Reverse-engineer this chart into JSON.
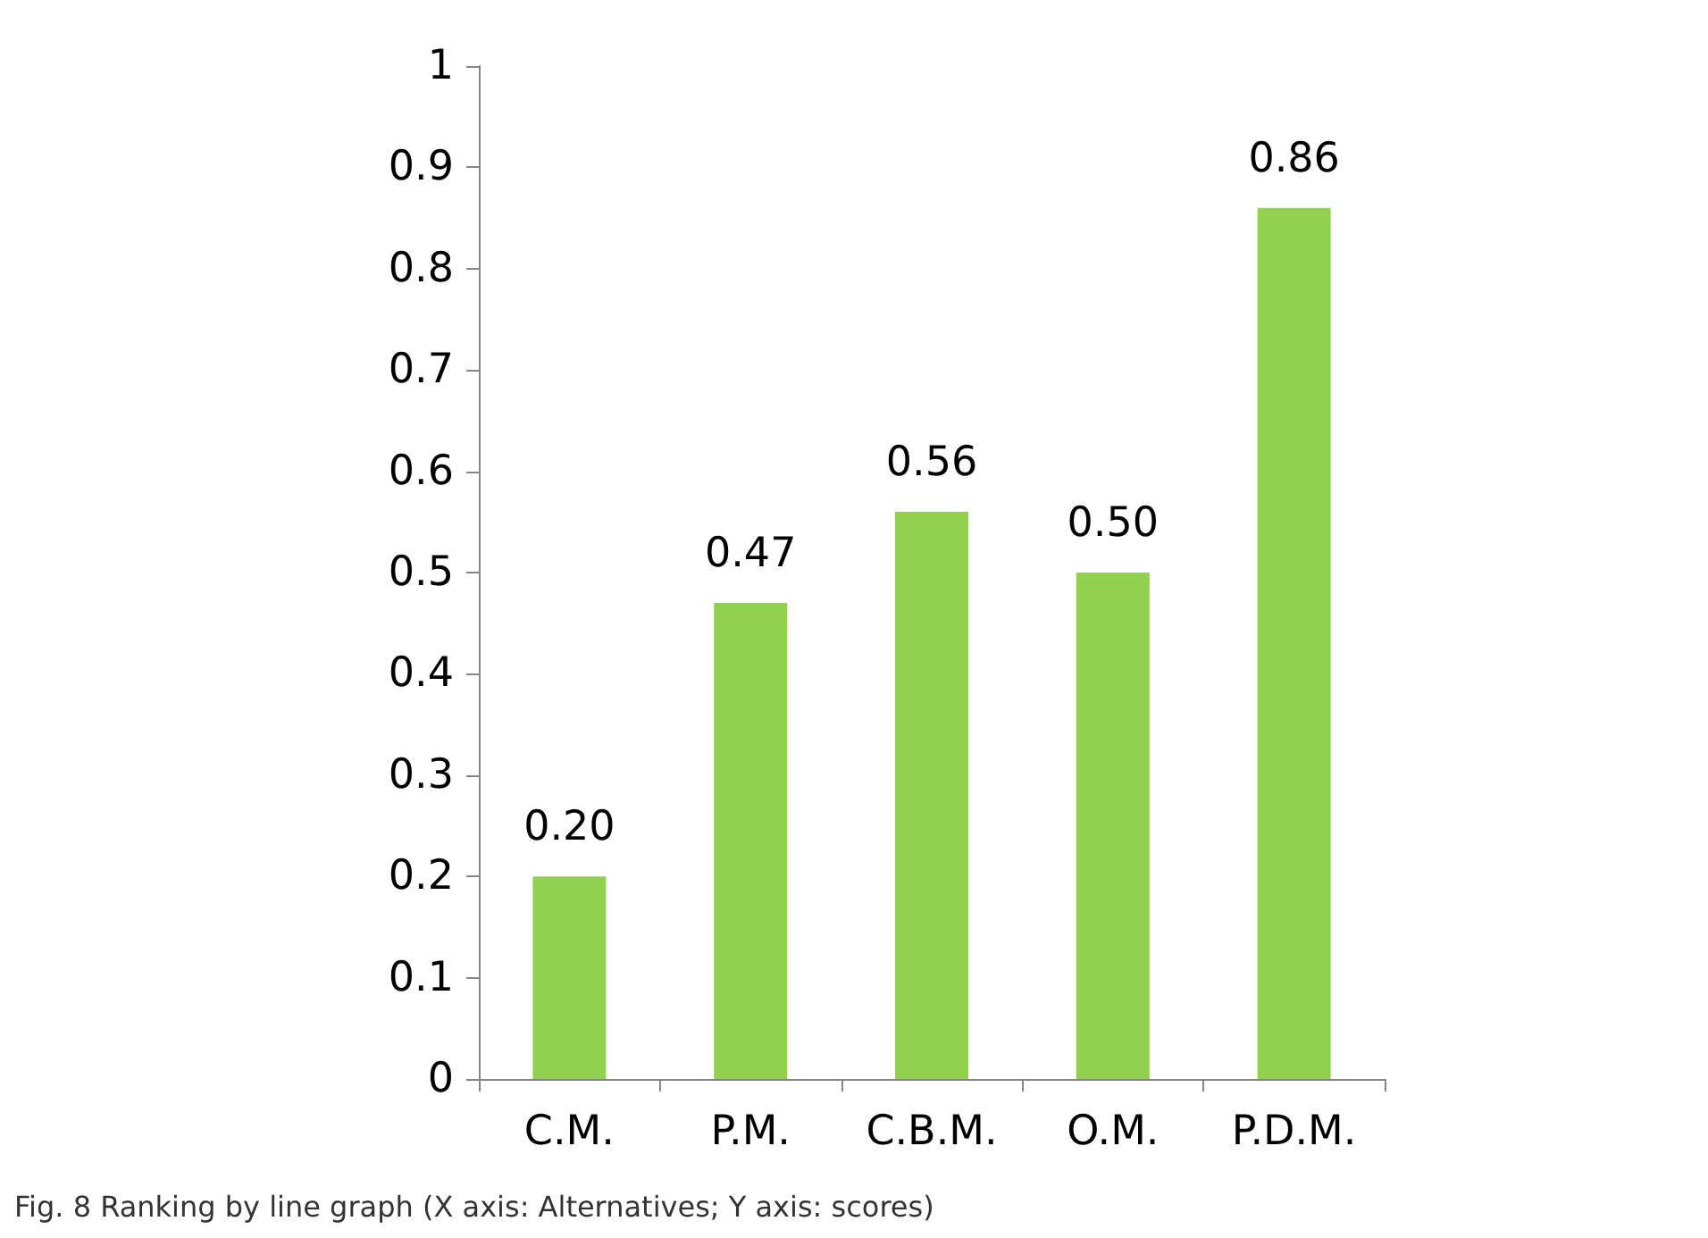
{
  "chart_data": {
    "type": "bar",
    "categories": [
      "C.M.",
      "P.M.",
      "C.B.M.",
      "O.M.",
      "P.D.M."
    ],
    "values": [
      0.2,
      0.47,
      0.56,
      0.5,
      0.86
    ],
    "value_labels": [
      "0.20",
      "0.47",
      "0.56",
      "0.50",
      "0.86"
    ],
    "color": "#92d050",
    "ylim": [
      0,
      1
    ],
    "yticks": [
      0,
      0.1,
      0.2,
      0.3,
      0.4,
      0.5,
      0.6,
      0.7,
      0.8,
      0.9,
      1
    ],
    "grid": false,
    "annotations": [
      "Fig. 8 Ranking by line graph (X axis: Alternatives; Y axis: scores)"
    ]
  }
}
